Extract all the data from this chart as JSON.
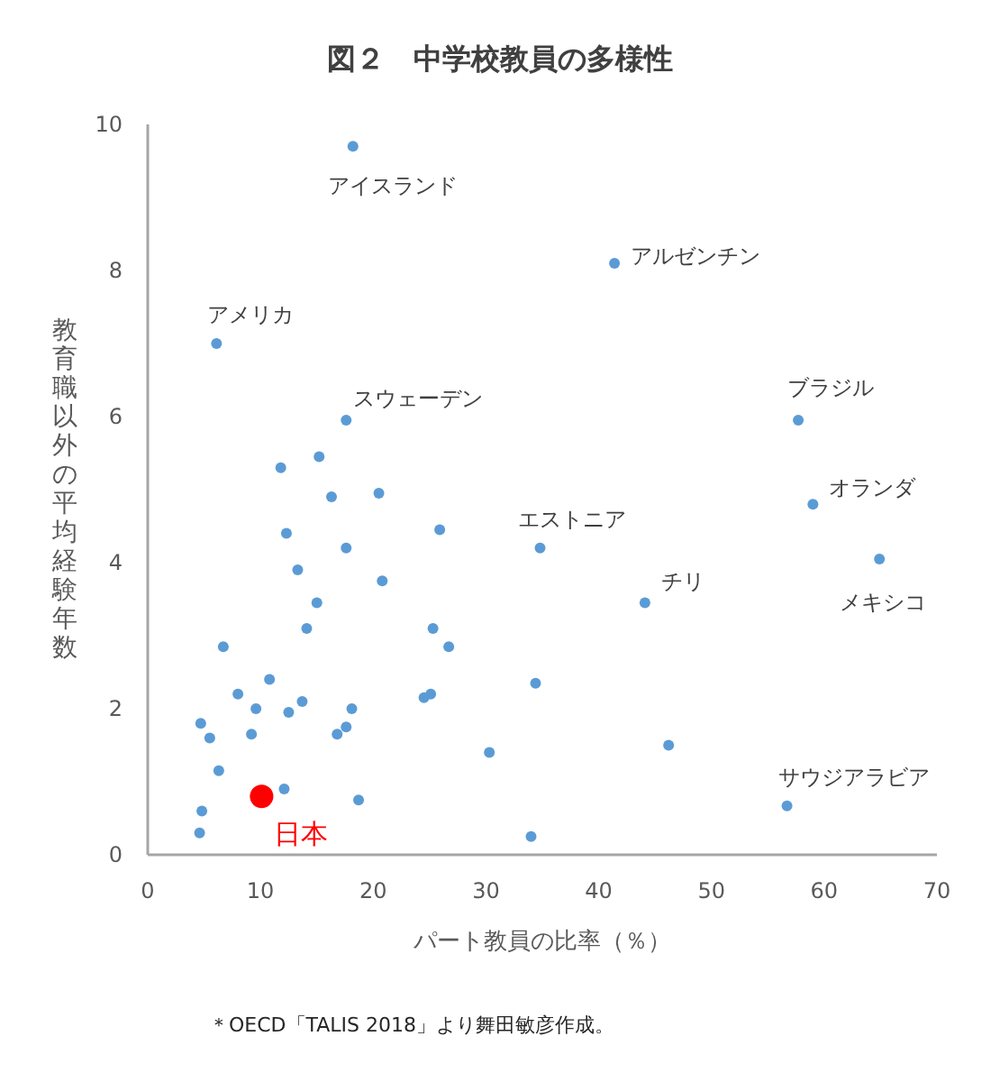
{
  "chart_data": {
    "type": "scatter",
    "title": "図２　中学校教員の多様性",
    "xlabel": "パート教員の比率（％）",
    "ylabel": "教育職以外の平均経験年数",
    "xlim": [
      0,
      70
    ],
    "xticks": [
      0,
      10,
      20,
      30,
      40,
      50,
      60,
      70
    ],
    "ylim": [
      0,
      10
    ],
    "yticks": [
      0,
      2,
      4,
      6,
      8,
      10
    ],
    "grid": false,
    "marker": "circle",
    "series": [
      {
        "color": "#5b9bd5",
        "x": [
          18.2,
          6.1,
          17.6,
          41.4,
          57.7,
          59.0,
          64.9,
          44.1,
          34.8,
          56.7,
          15.2,
          11.8,
          16.3,
          20.5,
          12.3,
          17.6,
          25.9,
          13.3,
          20.8,
          15.0,
          14.1,
          25.3,
          6.7,
          26.7,
          10.8,
          8.0,
          9.6,
          13.7,
          12.5,
          18.1,
          24.5,
          25.1,
          34.4,
          4.7,
          5.5,
          9.2,
          17.6,
          16.8,
          30.3,
          6.3,
          12.1,
          18.7,
          4.8,
          4.6,
          34.0,
          46.2
        ],
        "values": [
          9.7,
          7.0,
          5.95,
          8.1,
          5.95,
          4.8,
          4.05,
          3.45,
          4.2,
          0.67,
          5.45,
          5.3,
          4.9,
          4.95,
          4.4,
          4.2,
          4.45,
          3.9,
          3.75,
          3.45,
          3.1,
          3.1,
          2.85,
          2.85,
          2.4,
          2.2,
          2.0,
          2.1,
          1.95,
          2.0,
          2.15,
          2.2,
          2.35,
          1.8,
          1.6,
          1.65,
          1.75,
          1.65,
          1.4,
          1.15,
          0.9,
          0.75,
          0.6,
          0.3,
          0.25,
          1.5
        ]
      },
      {
        "name": "日本",
        "color": "#ff0000",
        "x": [
          10.1
        ],
        "values": [
          0.8
        ]
      }
    ],
    "annotations": [
      {
        "text": "アイスランド",
        "x": 18.2,
        "y": 9.7
      },
      {
        "text": "アメリカ",
        "x": 6.1,
        "y": 7.0
      },
      {
        "text": "スウェーデン",
        "x": 17.6,
        "y": 5.95
      },
      {
        "text": "アルゼンチン",
        "x": 41.4,
        "y": 8.1
      },
      {
        "text": "ブラジル",
        "x": 57.7,
        "y": 5.95
      },
      {
        "text": "オランダ",
        "x": 59.0,
        "y": 4.8
      },
      {
        "text": "メキシコ",
        "x": 64.9,
        "y": 4.05
      },
      {
        "text": "チリ",
        "x": 44.1,
        "y": 3.45
      },
      {
        "text": "エストニア",
        "x": 34.8,
        "y": 4.2
      },
      {
        "text": "サウジアラビア",
        "x": 56.7,
        "y": 0.67
      },
      "＊OECD「TALIS 2018」より舞田敏彦作成。"
    ]
  }
}
